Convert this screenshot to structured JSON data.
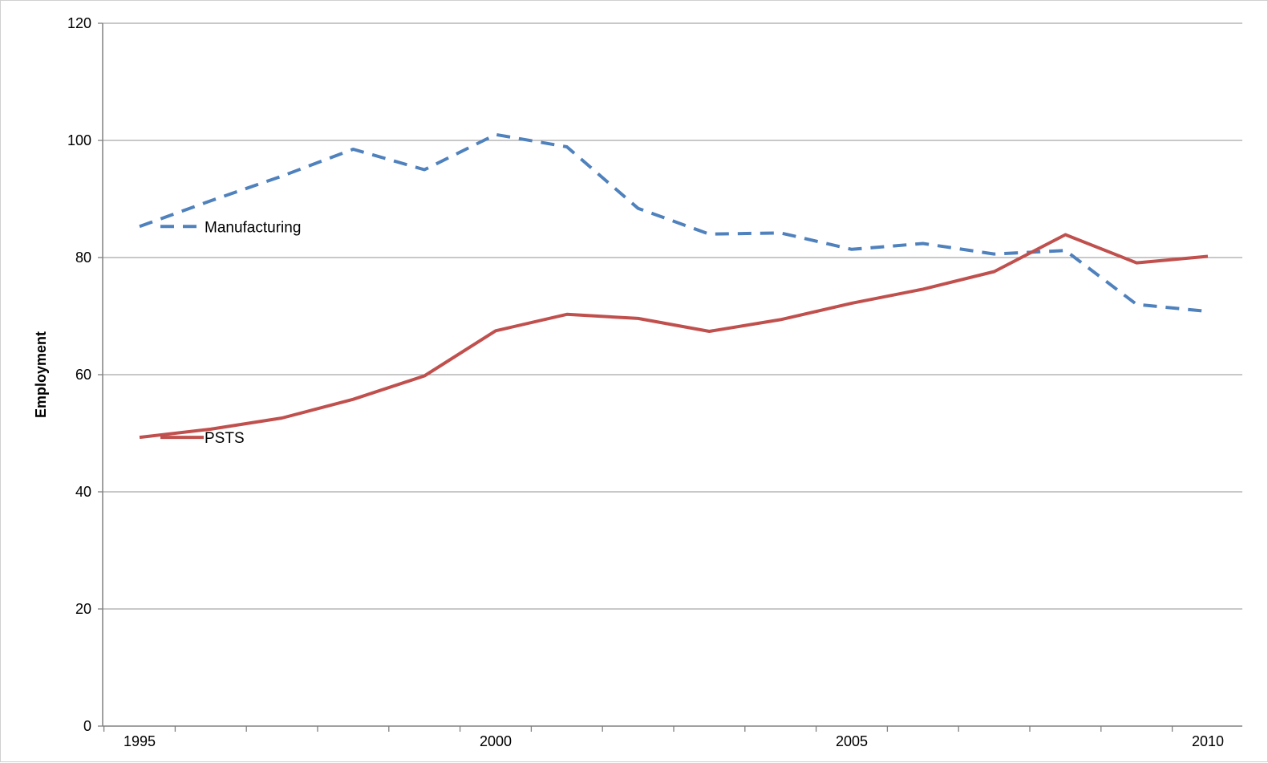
{
  "chart_data": {
    "type": "line",
    "title": "",
    "xlabel": "",
    "ylabel": "Employment",
    "xlim": [
      1995,
      2010
    ],
    "ylim": [
      0,
      120
    ],
    "yticks": [
      0,
      20,
      40,
      60,
      80,
      100,
      120
    ],
    "xticks": [
      1995,
      2000,
      2005,
      2010
    ],
    "grid": "horizontal",
    "legend": "inline",
    "x": [
      1995,
      1996,
      1997,
      1998,
      1999,
      2000,
      2001,
      2002,
      2003,
      2004,
      2005,
      2006,
      2007,
      2008,
      2009,
      2010
    ],
    "series": [
      {
        "name": "Manufacturing",
        "style": "dashed",
        "color": "#4f81bd",
        "values": [
          85.3,
          89.7,
          93.9,
          98.5,
          95.0,
          101.0,
          98.9,
          88.4,
          84.0,
          84.2,
          81.4,
          82.4,
          80.6,
          81.2,
          72.0,
          70.8
        ]
      },
      {
        "name": "PSTS",
        "style": "solid",
        "color": "#c0504d",
        "values": [
          49.3,
          50.7,
          52.6,
          55.8,
          59.8,
          67.5,
          70.3,
          69.6,
          67.4,
          69.4,
          72.2,
          74.6,
          77.6,
          83.9,
          79.1,
          80.2
        ]
      }
    ]
  }
}
